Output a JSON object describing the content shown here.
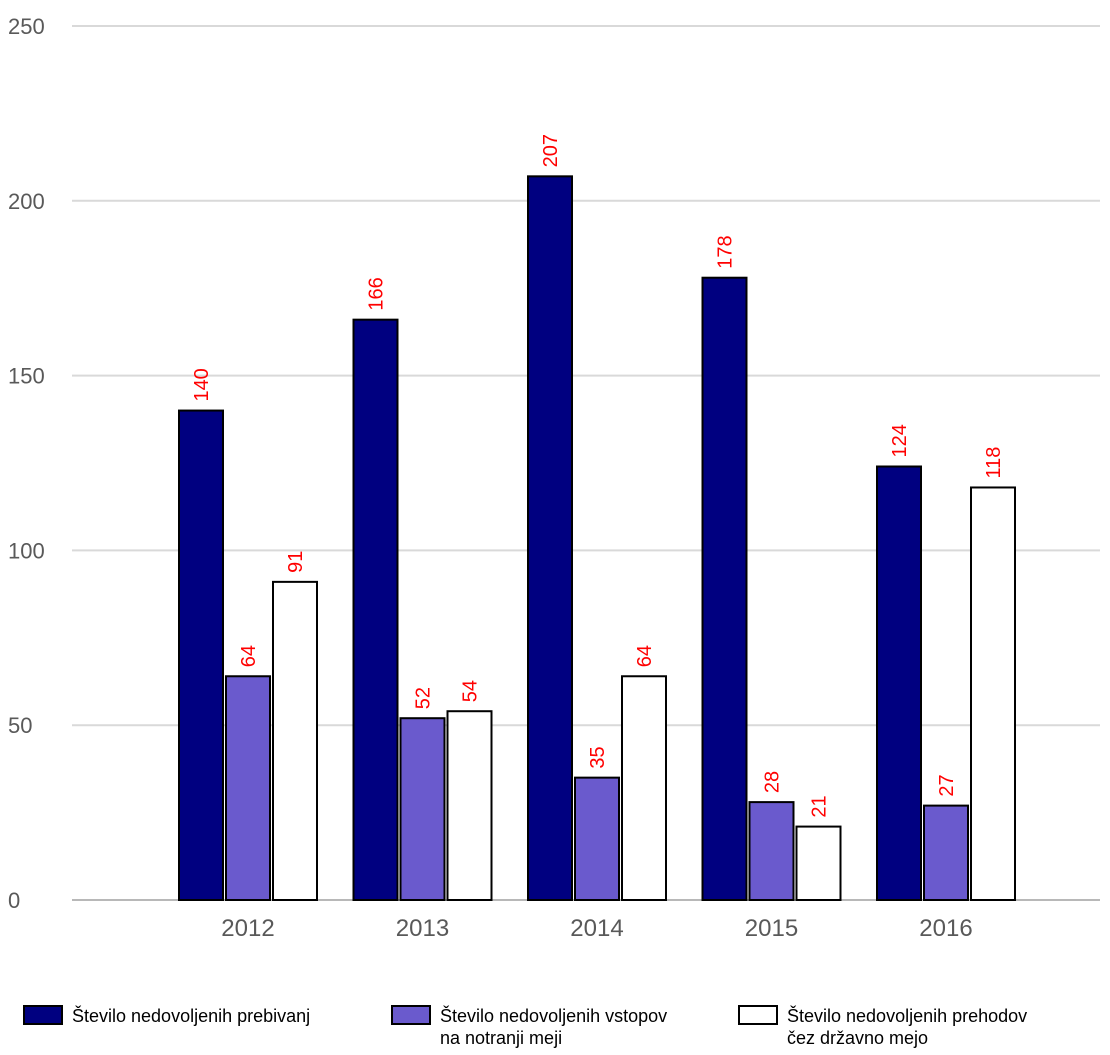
{
  "chart_data": {
    "type": "bar",
    "categories": [
      "2012",
      "2013",
      "2014",
      "2015",
      "2016"
    ],
    "series": [
      {
        "name": "Število nedovoljenih prebivanj",
        "values": [
          140,
          166,
          207,
          178,
          124
        ],
        "color": "#000080"
      },
      {
        "name": "Število nedovoljenih vstopov na notranji meji",
        "values": [
          64,
          52,
          35,
          28,
          27
        ],
        "color": "#6a5acd"
      },
      {
        "name": "Število nedovoljenih prehodov čez državno mejo",
        "values": [
          91,
          54,
          64,
          21,
          118
        ],
        "color": "#ffffff"
      }
    ],
    "ylim": [
      0,
      250
    ],
    "yticks": [
      "0",
      "50",
      "100",
      "150",
      "200",
      "250"
    ],
    "title": "",
    "xlabel": "",
    "ylabel": "",
    "grid": true,
    "legend_position": "bottom",
    "data_label_color": "#ff0000",
    "legend_lines": [
      [
        "Število nedovoljenih prebivanj"
      ],
      [
        "Število nedovoljenih vstopov",
        "na notranji meji"
      ],
      [
        "Število nedovoljenih prehodov",
        "čez državno mejo"
      ]
    ]
  }
}
